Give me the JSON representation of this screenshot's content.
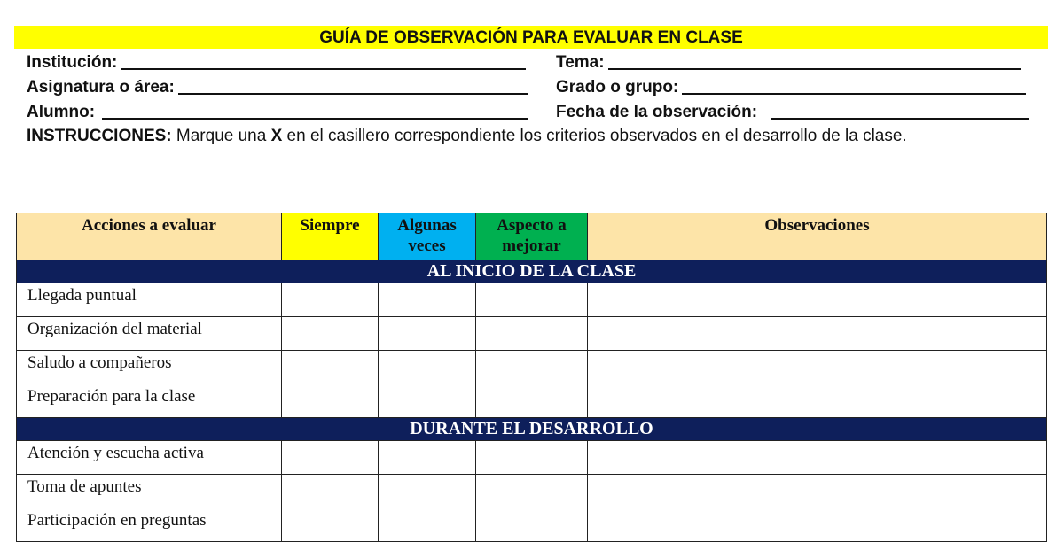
{
  "title": "GUÍA DE OBSERVACIÓN PARA EVALUAR EN CLASE",
  "fields": {
    "institucion": "Institución:",
    "tema": "Tema:",
    "asignatura": "Asignatura o área:",
    "grado": "Grado o grupo:",
    "alumno": "Alumno:",
    "fecha": "Fecha de la observación:"
  },
  "instructions": {
    "label": "INSTRUCCIONES:",
    "text1": " Marque una ",
    "x": "X",
    "text2": " en el casillero correspondiente los criterios observados en el desarrollo de la clase."
  },
  "table": {
    "headers": [
      "Acciones a evaluar",
      "Siempre",
      "Algunas veces",
      "Aspecto a mejorar",
      "Observaciones"
    ],
    "header_colors": [
      "#fde4a8",
      "#ffff00",
      "#00b0f0",
      "#00b050",
      "#fde4a8"
    ],
    "sections": [
      {
        "title": "AL INICIO DE LA CLASE",
        "rows": [
          "Llegada puntual",
          "Organización del material",
          "Saludo a compañeros",
          "Preparación para la clase"
        ]
      },
      {
        "title": "DURANTE EL DESARROLLO",
        "rows": [
          "Atención y escucha activa",
          "Toma de apuntes",
          "Participación en preguntas"
        ]
      }
    ]
  }
}
